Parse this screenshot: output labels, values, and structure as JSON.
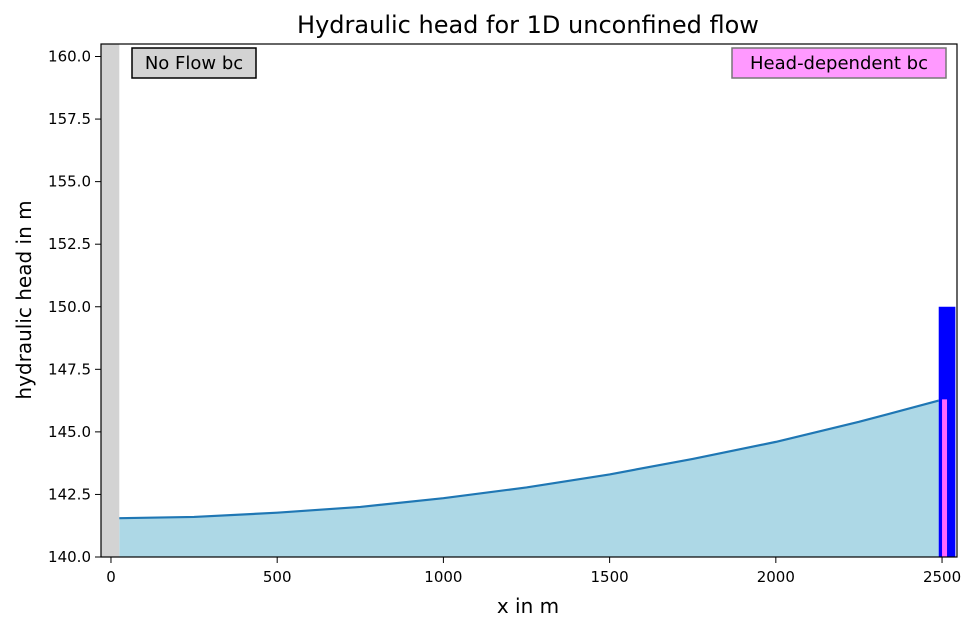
{
  "chart_data": {
    "type": "area",
    "title": "Hydraulic head for 1D unconfined flow",
    "xlabel": "x in m",
    "ylabel": "hydraulic head in m",
    "xlim": [
      -30,
      2545
    ],
    "ylim": [
      140.0,
      160.5
    ],
    "x_ticks": [
      0,
      500,
      1000,
      1500,
      2000,
      2500
    ],
    "y_ticks": [
      140.0,
      142.5,
      145.0,
      147.5,
      150.0,
      152.5,
      155.0,
      157.5,
      160.0
    ],
    "grid": false,
    "series": [
      {
        "x": [
          25,
          250,
          500,
          750,
          1000,
          1250,
          1500,
          1750,
          2000,
          2250,
          2490
        ],
        "values": [
          141.55,
          141.6,
          141.77,
          142.0,
          142.35,
          142.78,
          143.3,
          143.92,
          144.6,
          145.4,
          146.25
        ],
        "color": "#1f77b4",
        "fill": "#add8e6"
      }
    ],
    "annotations": [
      {
        "text": "No Flow bc",
        "position": "top-left",
        "facecolor": "#d3d3d3",
        "edgecolor": "#000000"
      },
      {
        "text": "Head-dependent bc",
        "position": "top-right",
        "facecolor": "#ff99ff",
        "edgecolor": "#777777"
      }
    ],
    "boundary_regions": [
      {
        "type": "no-flow-wall",
        "x0": -30,
        "x1": 25,
        "y0": 140.0,
        "y1": 160.5,
        "color": "#d3d3d3"
      },
      {
        "type": "river-stage",
        "x0": 2490,
        "x1": 2540,
        "y0": 140.0,
        "y1": 150.0,
        "color": "#0000ff"
      },
      {
        "type": "riverbed",
        "x0": 2500,
        "x1": 2515,
        "y0": 140.0,
        "y1": 146.3,
        "color": "#ff66ff"
      }
    ]
  }
}
